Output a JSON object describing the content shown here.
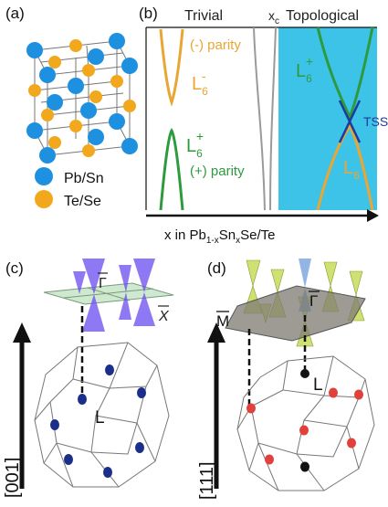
{
  "figure": {
    "panel_a": {
      "label": "(a)",
      "legend": [
        {
          "text": "Pb/Sn",
          "color": "#1E90E0"
        },
        {
          "text": "Te/Se",
          "color": "#F2A81D"
        }
      ]
    },
    "panel_b": {
      "label": "(b)",
      "trivial": "Trivial",
      "xc": "x",
      "xc_sub": "c",
      "topological": "Topological",
      "neg_parity": "(-) parity",
      "pos_parity": "(+) parity",
      "L_minus": "L",
      "L_minus_sup": "-",
      "L_minus_sub": "6",
      "L_plus": "L",
      "L_plus_sup": "+",
      "L_plus_sub": "6",
      "L_plus_right": "L",
      "L_plus_right_sup": "+",
      "L_plus_right_sub": "6",
      "L_lower_right": "L",
      "L_lower_right_sub": "6",
      "tss": "TSS",
      "axis_text": "x in Pb",
      "axis_sub1": "1-x",
      "axis_mid": "Sn",
      "axis_sub2": "x",
      "axis_end": "Se/Te",
      "colors": {
        "trivial_band_neg": "#E8A735",
        "trivial_band_pos": "#2E9A3E",
        "topo_bg": "#3EC3E8",
        "tss": "#1B3C9C"
      }
    },
    "panel_c": {
      "label": "(c)",
      "gamma": "Γ",
      "xbar": "X",
      "L": "L",
      "direction": "[001]",
      "cone_color": "#6A4BF0",
      "point_color": "#1B2F8A"
    },
    "panel_d": {
      "label": "(d)",
      "M": "M",
      "gamma": "Γ",
      "L": "L",
      "direction": "[111]",
      "cone_color": "#C8DC5A",
      "blue_cone_color": "#7FA8E0",
      "point_color": "#E0413A"
    }
  }
}
